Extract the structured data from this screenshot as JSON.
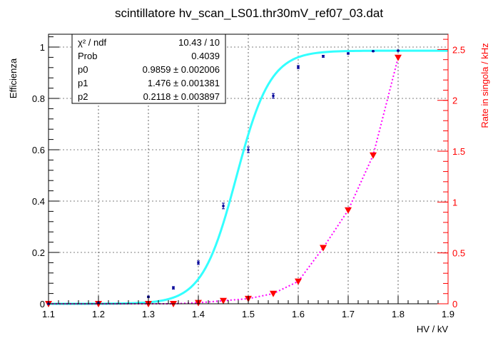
{
  "chart_data": {
    "type": "scatter",
    "title": "scintillatore hv_scan_LS01.thr30mV_ref07_03.dat",
    "xlabel": "HV / kV",
    "ylabel": "Efficienza",
    "y2label": "Rate in singola / kHz",
    "xlim": [
      1.1,
      1.9
    ],
    "ylim": [
      0,
      1.05
    ],
    "y2lim": [
      0,
      2.65
    ],
    "x_ticks": [
      "1.1",
      "1.2",
      "1.3",
      "1.4",
      "1.5",
      "1.6",
      "1.7",
      "1.8",
      "1.9"
    ],
    "y_ticks": [
      "0",
      "0.2",
      "0.4",
      "0.6",
      "0.8",
      "1"
    ],
    "y2_ticks": [
      "0",
      "0.5",
      "1",
      "1.5",
      "2",
      "2.5"
    ],
    "grid": true,
    "colors": {
      "efficiency_points": "#000099",
      "efficiency_fit": "#33ffff",
      "rate_points": "#ff0000",
      "rate_line": "#ff00ff",
      "right_axis": "#ff0000",
      "axis": "#000000",
      "grid": "#000000"
    },
    "series": [
      {
        "axis": "left",
        "x": [
          1.1,
          1.2,
          1.3,
          1.35,
          1.4,
          1.45,
          1.5,
          1.55,
          1.6,
          1.65,
          1.7,
          1.75,
          1.8
        ],
        "y": [
          0.0,
          0.003,
          0.027,
          0.062,
          0.16,
          0.381,
          0.6,
          0.81,
          0.922,
          0.964,
          0.975,
          0.984,
          0.986
        ],
        "yerr": [
          0.002,
          0.002,
          0.003,
          0.005,
          0.007,
          0.011,
          0.011,
          0.009,
          0.006,
          0.004,
          0.003,
          0.002,
          0.002
        ]
      },
      {
        "axis": "right",
        "x": [
          1.1,
          1.2,
          1.3,
          1.35,
          1.4,
          1.45,
          1.5,
          1.55,
          1.6,
          1.65,
          1.7,
          1.75,
          1.8
        ],
        "y": [
          0.0,
          0.0,
          0.0,
          0.0,
          0.01,
          0.03,
          0.05,
          0.1,
          0.22,
          0.55,
          0.92,
          1.46,
          2.42
        ]
      }
    ],
    "fit": {
      "function": "sigmoid",
      "params": {
        "p0": 0.9859,
        "p1": 1.476,
        "p2": 0.2118
      }
    }
  },
  "stats": {
    "rows": [
      {
        "label": "χ² / ndf",
        "value": "10.43 / 10"
      },
      {
        "label": "Prob",
        "value": "0.4039"
      },
      {
        "label": "p0",
        "value": "0.9859 ± 0.002006"
      },
      {
        "label": "p1",
        "value": "1.476 ± 0.001381"
      },
      {
        "label": "p2",
        "value": "0.2118 ± 0.003897"
      }
    ]
  }
}
